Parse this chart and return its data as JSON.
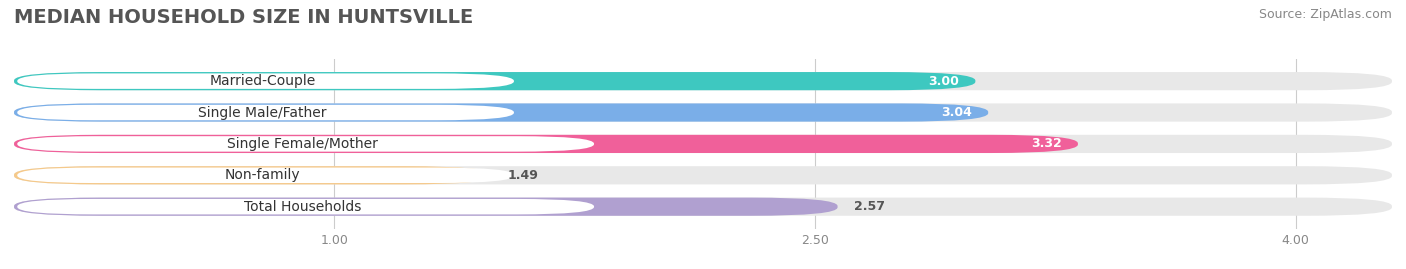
{
  "title": "MEDIAN HOUSEHOLD SIZE IN HUNTSVILLE",
  "source": "Source: ZipAtlas.com",
  "categories": [
    "Married-Couple",
    "Single Male/Father",
    "Single Female/Mother",
    "Non-family",
    "Total Households"
  ],
  "values": [
    3.0,
    3.04,
    3.32,
    1.49,
    2.57
  ],
  "bar_colors": [
    "#3ec8c0",
    "#7aaee8",
    "#f0609a",
    "#f5c98a",
    "#b0a0d0"
  ],
  "value_label_colors": [
    "white",
    "white",
    "white",
    "#555555",
    "#555555"
  ],
  "xlim": [
    0,
    4.3
  ],
  "xticks": [
    1.0,
    2.5,
    4.0
  ],
  "xtick_labels": [
    "1.00",
    "2.50",
    "4.00"
  ],
  "title_fontsize": 14,
  "source_fontsize": 9,
  "label_fontsize": 10,
  "value_fontsize": 9,
  "background_color": "#ffffff",
  "bar_bg_color": "#e8e8e8",
  "label_bg_color": "#ffffff"
}
